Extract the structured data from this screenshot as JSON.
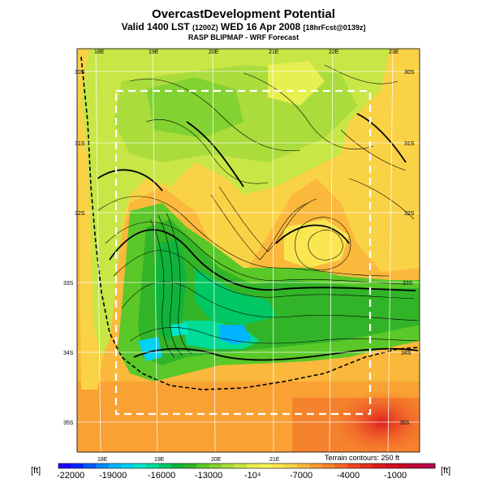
{
  "header": {
    "title": "OvercastDevelopment Potential",
    "valid_main": "Valid 1400 LST",
    "valid_utc": "(1200Z)",
    "valid_date": "WED 16 Apr 2008",
    "valid_fcst": "[18hrFcst@0139z]",
    "subtitle": "RASP BLIPMAP - WRF Forecast"
  },
  "map": {
    "lon_labels_top": [
      "18E",
      "19E",
      "20E",
      "21E",
      "22E",
      "23E"
    ],
    "lon_labels_bottom": [
      "18E",
      "19E",
      "20E",
      "21E"
    ],
    "lat_labels_left": [
      "30S",
      "31S",
      "32S",
      "33S",
      "34S",
      "35S"
    ],
    "lat_labels_right": [
      "30S",
      "31S",
      "32S",
      "33S",
      "34S",
      "35S"
    ],
    "terrain_note": "Terrain contours: 250 ft"
  },
  "colorbar": {
    "unit_left": "[ft]",
    "unit_right": "[ft]",
    "tick_labels": [
      "-22000",
      "-19000",
      "-16000",
      "-13000",
      "-10⁴",
      "-7000",
      "-4000",
      "-1000"
    ],
    "colors": [
      "#1e00ff",
      "#0028ff",
      "#005aff",
      "#008cff",
      "#00b4ff",
      "#00d2f0",
      "#00e6c8",
      "#00dc96",
      "#00c864",
      "#10b43c",
      "#32b428",
      "#5ac828",
      "#82d232",
      "#aadc3c",
      "#c8e646",
      "#e6f050",
      "#f5f05a",
      "#fae650",
      "#fad246",
      "#fab93c",
      "#fa9b32",
      "#f5822d",
      "#f56428",
      "#f04623",
      "#e6321e",
      "#dc1e1e",
      "#d2141e",
      "#c80a28",
      "#be0a3c",
      "#b40a50"
    ]
  }
}
